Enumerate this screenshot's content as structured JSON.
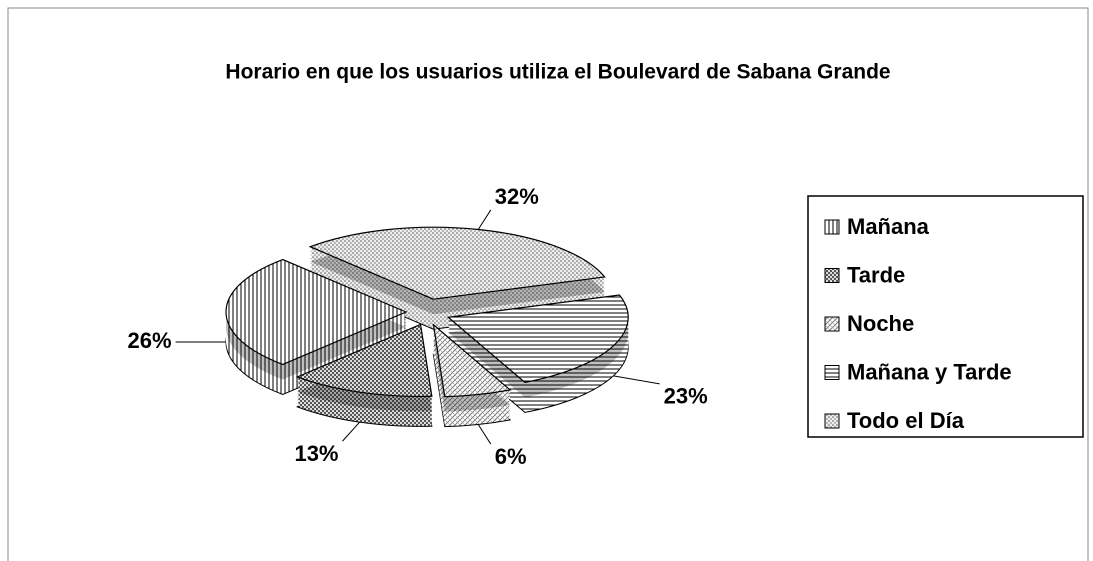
{
  "chart_data": {
    "type": "pie3d",
    "title": "Horario en que los usuarios utiliza el Boulevard de Sabana Grande",
    "categories": [
      "Mañana",
      "Tarde",
      "Noche",
      "Mañana y Tarde",
      "Todo el Día"
    ],
    "values": [
      26,
      13,
      6,
      23,
      32
    ],
    "value_labels": [
      "26%",
      "13%",
      "6%",
      "23%",
      "32%"
    ],
    "legend": "right"
  }
}
